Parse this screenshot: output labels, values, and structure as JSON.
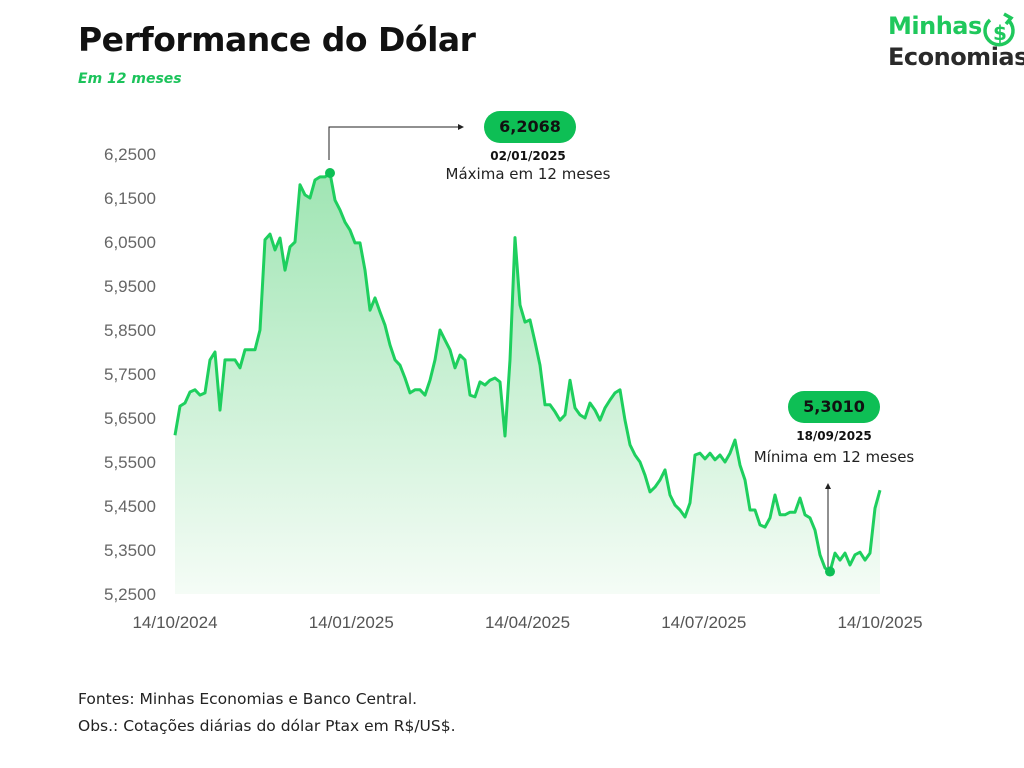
{
  "header": {
    "title": "Performance do Dólar",
    "subtitle": "Em 12 meses"
  },
  "logo": {
    "line1": "Minhas",
    "line2": "Economias"
  },
  "colors": {
    "line": "#1ecf5e",
    "badge": "#0ebf55",
    "accent": "#1cc35b"
  },
  "chart_data": {
    "type": "area",
    "title": "Performance do Dólar",
    "subtitle": "Em 12 meses",
    "xlabel": "",
    "ylabel": "",
    "x_range": [
      "14/10/2024",
      "14/10/2025"
    ],
    "x_ticks": [
      "14/10/2024",
      "14/01/2025",
      "14/04/2025",
      "14/07/2025",
      "14/10/2025"
    ],
    "y_ticks": [
      "6,2500",
      "6,1500",
      "6,0500",
      "5,9500",
      "5,8500",
      "5,7500",
      "5,6500",
      "5,5500",
      "5,4500",
      "5,3500",
      "5,2500"
    ],
    "ylim": [
      5.25,
      6.25
    ],
    "grid": false,
    "values": [
      5.611,
      5.677,
      5.684,
      5.709,
      5.714,
      5.702,
      5.707,
      5.782,
      5.8,
      5.668,
      5.782,
      5.782,
      5.782,
      5.764,
      5.805,
      5.805,
      5.805,
      5.85,
      6.055,
      6.068,
      6.032,
      6.059,
      5.986,
      6.039,
      6.05,
      6.18,
      6.157,
      6.15,
      6.191,
      6.198,
      6.198,
      6.2068,
      6.145,
      6.123,
      6.095,
      6.077,
      6.048,
      6.048,
      5.986,
      5.895,
      5.923,
      5.891,
      5.861,
      5.816,
      5.782,
      5.77,
      5.741,
      5.707,
      5.714,
      5.714,
      5.702,
      5.736,
      5.782,
      5.85,
      5.827,
      5.805,
      5.764,
      5.793,
      5.782,
      5.702,
      5.698,
      5.732,
      5.725,
      5.736,
      5.741,
      5.732,
      5.609,
      5.782,
      6.06,
      5.907,
      5.868,
      5.873,
      5.823,
      5.77,
      5.68,
      5.68,
      5.664,
      5.645,
      5.657,
      5.736,
      5.673,
      5.657,
      5.65,
      5.684,
      5.668,
      5.645,
      5.673,
      5.691,
      5.707,
      5.714,
      5.645,
      5.589,
      5.566,
      5.55,
      5.52,
      5.482,
      5.493,
      5.509,
      5.532,
      5.475,
      5.452,
      5.441,
      5.425,
      5.457,
      5.566,
      5.57,
      5.557,
      5.57,
      5.555,
      5.566,
      5.55,
      5.57,
      5.6,
      5.543,
      5.509,
      5.441,
      5.441,
      5.407,
      5.402,
      5.423,
      5.475,
      5.43,
      5.43,
      5.436,
      5.436,
      5.468,
      5.43,
      5.423,
      5.395,
      5.339,
      5.309,
      5.301,
      5.343,
      5.327,
      5.343,
      5.316,
      5.339,
      5.345,
      5.327,
      5.343,
      5.445,
      5.486
    ],
    "annotations": {
      "max": {
        "value": "6,2068",
        "date": "02/01/2025",
        "label": "Máxima em 12 meses"
      },
      "min": {
        "value": "5,3010",
        "date": "18/09/2025",
        "label": "Mínima em 12 meses"
      }
    }
  },
  "footer": {
    "sources": "Fontes: Minhas Economias e Banco Central.",
    "note": "Obs.: Cotações diárias do dólar Ptax em R$/US$."
  }
}
